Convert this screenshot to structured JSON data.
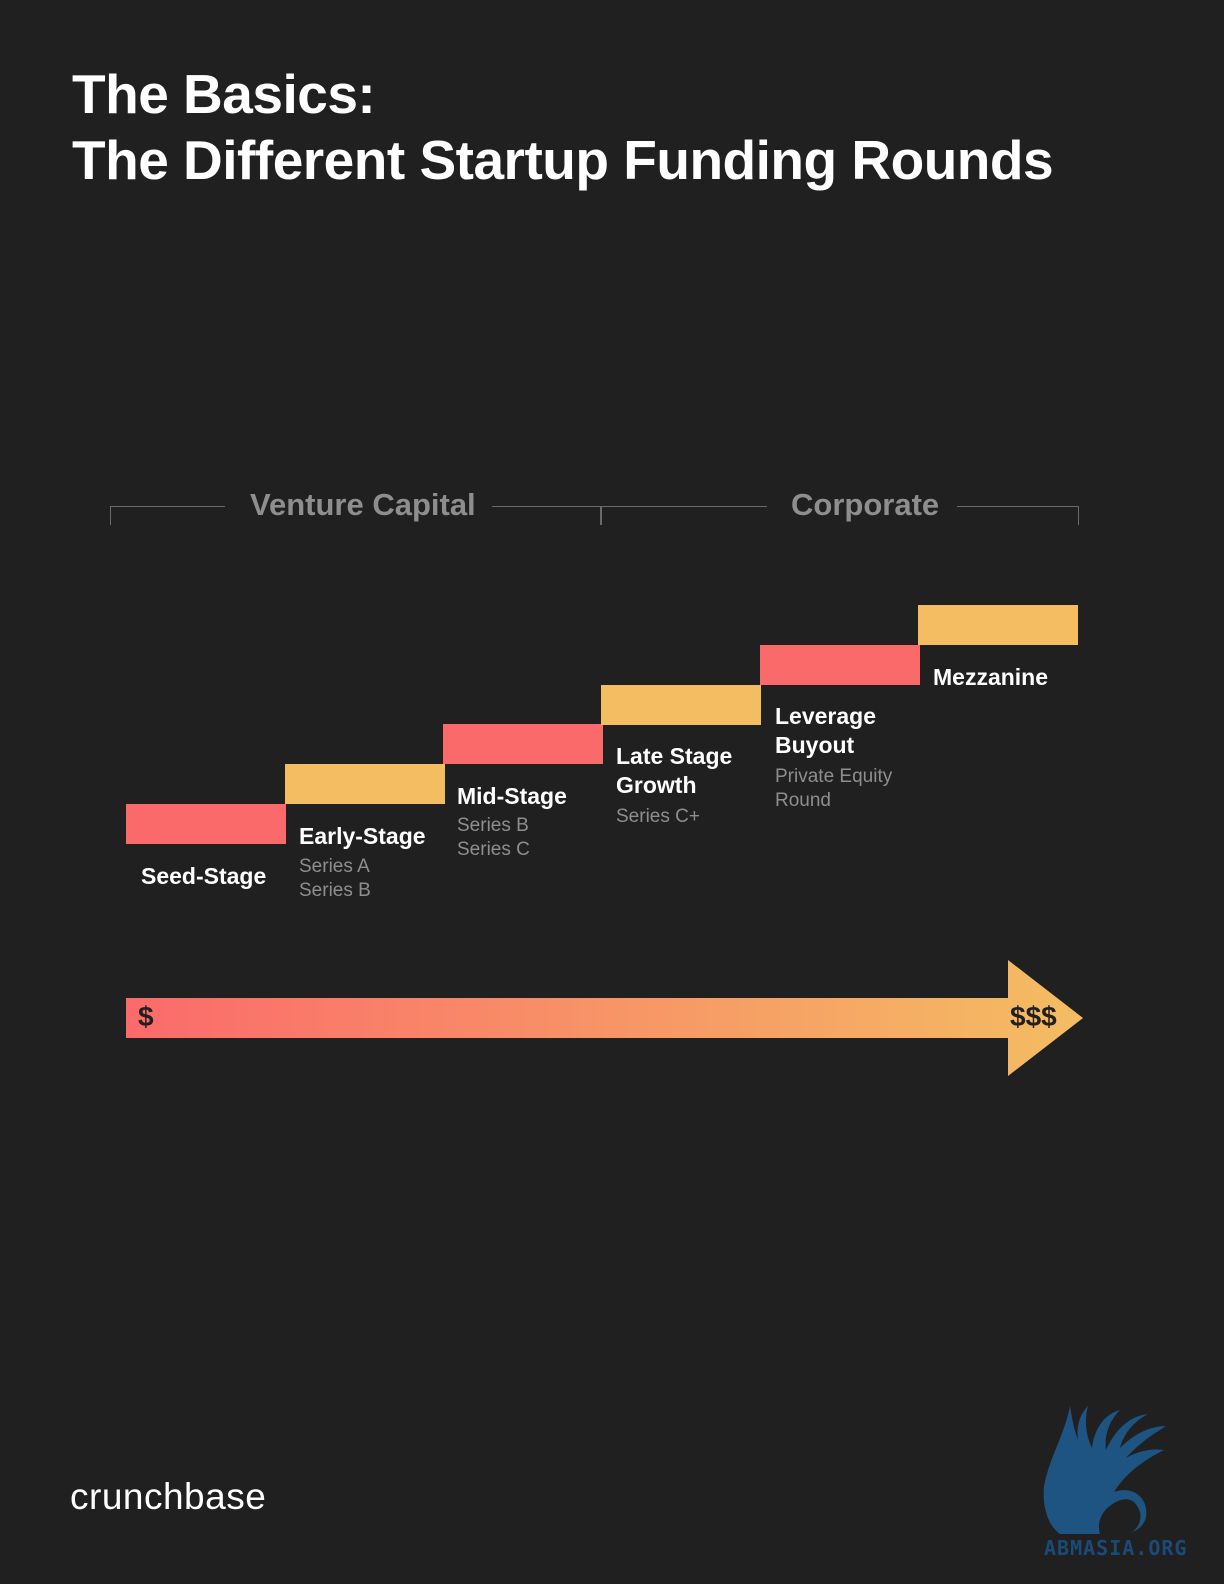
{
  "title": {
    "line1": "The Basics:",
    "line2": "The Different Startup Funding Rounds"
  },
  "groups": [
    {
      "label": "Venture Capital"
    },
    {
      "label": "Corporate"
    }
  ],
  "stages": [
    {
      "name": [
        "Seed-Stage"
      ],
      "details": [],
      "color": "#fb6a6b"
    },
    {
      "name": [
        "Early-Stage"
      ],
      "details": [
        "Series A",
        "Series B"
      ],
      "color": "#f4bd62"
    },
    {
      "name": [
        "Mid-Stage"
      ],
      "details": [
        "Series B",
        "Series C"
      ],
      "color": "#fb6a6b"
    },
    {
      "name": [
        "Late Stage",
        "Growth"
      ],
      "details": [
        "Series C+"
      ],
      "color": "#f4bd62"
    },
    {
      "name": [
        "Leverage",
        "Buyout"
      ],
      "details": [
        "Private Equity",
        "Round"
      ],
      "color": "#fb6a6b"
    },
    {
      "name": [
        "Mezzanine"
      ],
      "details": [],
      "color": "#f4bd62"
    }
  ],
  "scale": {
    "low_label": "$",
    "high_label": "$$$",
    "gradient_start": "#fb6a6b",
    "gradient_end": "#f4bd62"
  },
  "brand": "crunchbase",
  "watermark": "ABMASIA.ORG",
  "colors": {
    "background": "#202020",
    "pink": "#fb6a6b",
    "amber": "#f4bd62",
    "muted_text": "#8e8e8e"
  }
}
